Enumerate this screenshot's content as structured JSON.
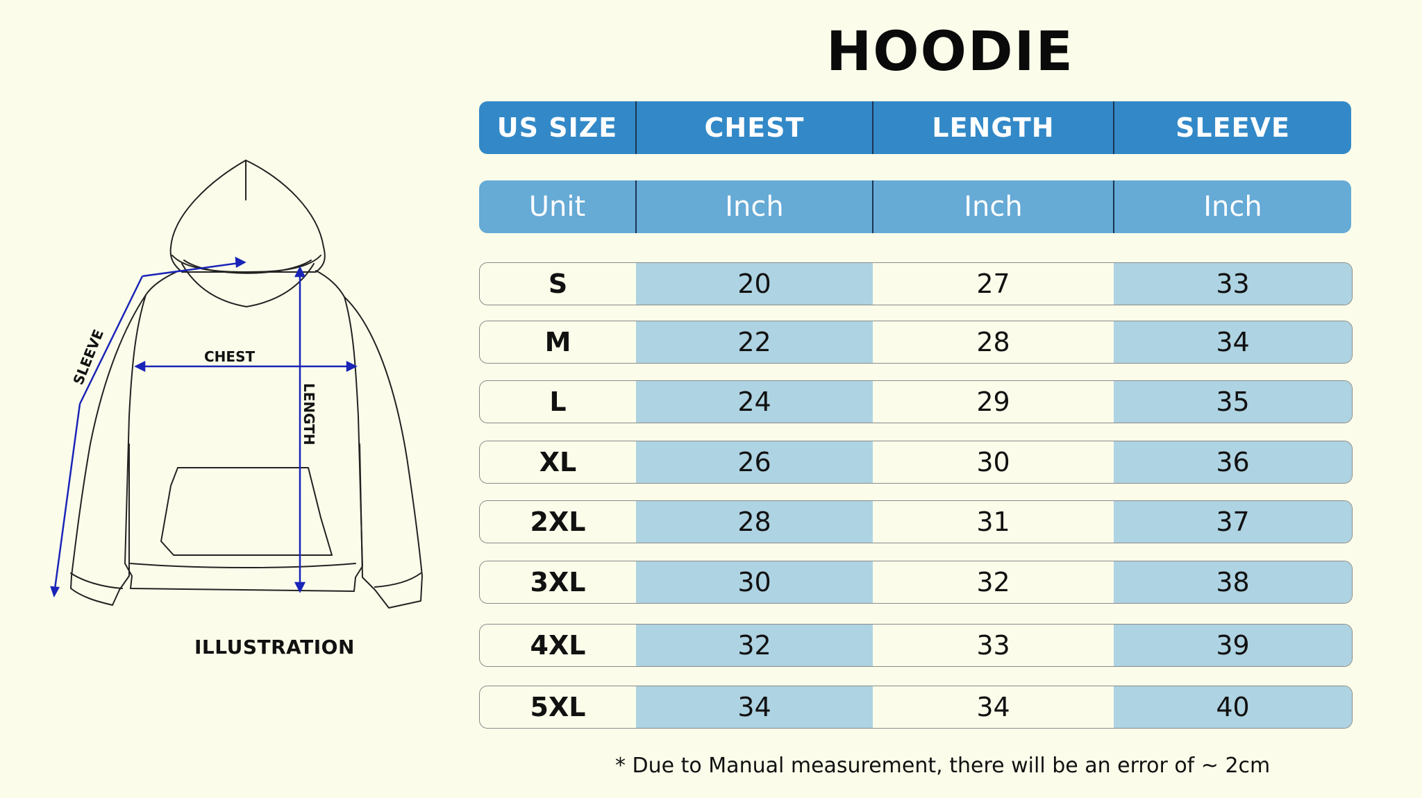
{
  "title": "HOODIE",
  "header": {
    "size": "US SIZE",
    "chest": "CHEST",
    "length": "LENGTH",
    "sleeve": "SLEEVE"
  },
  "units": {
    "label": "Unit",
    "chest": "Inch",
    "length": "Inch",
    "sleeve": "Inch"
  },
  "rows": [
    {
      "size": "S",
      "chest": "20",
      "length": "27",
      "sleeve": "33"
    },
    {
      "size": "M",
      "chest": "22",
      "length": "28",
      "sleeve": "34"
    },
    {
      "size": "L",
      "chest": "24",
      "length": "29",
      "sleeve": "35"
    },
    {
      "size": "XL",
      "chest": "26",
      "length": "30",
      "sleeve": "36"
    },
    {
      "size": "2XL",
      "chest": "28",
      "length": "31",
      "sleeve": "37"
    },
    {
      "size": "3XL",
      "chest": "30",
      "length": "32",
      "sleeve": "38"
    },
    {
      "size": "4XL",
      "chest": "32",
      "length": "33",
      "sleeve": "39"
    },
    {
      "size": "5XL",
      "chest": "34",
      "length": "34",
      "sleeve": "40"
    }
  ],
  "illustration": {
    "label": "ILLUSTRATION",
    "sleeve_label": "SLEEVE",
    "chest_label": "CHEST",
    "length_label": "LENGTH"
  },
  "note": "* Due to Manual measurement, there will be an error of ~ 2cm",
  "colors": {
    "background": "#fbfdea",
    "header_blue": "#3389c7",
    "unit_blue": "#66aad6",
    "cell_shade": "#aed3e2",
    "measure_line": "#1a24b8"
  }
}
